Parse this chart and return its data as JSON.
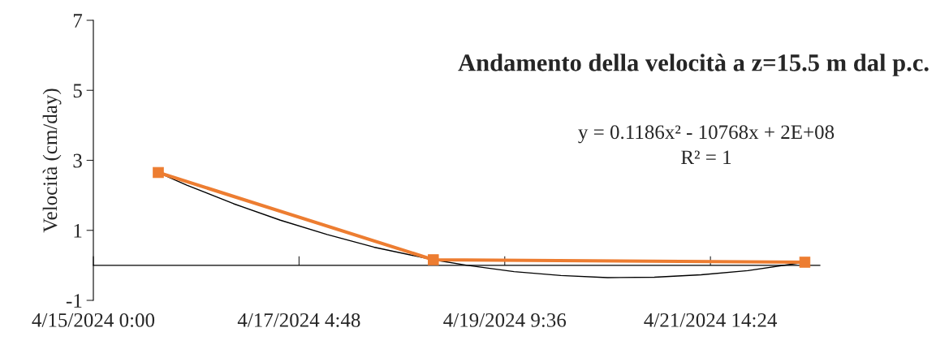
{
  "chart_data": {
    "type": "line",
    "title": "Andamento della velocità a z=15.5 m dal p.c.",
    "ylabel": "Velocità (cm/day)",
    "series": [
      {
        "color": "#ed7d31",
        "x": [
          "2024-04-15T16:40",
          "2024-04-18T15:16",
          "2024-04-22T14:38"
        ],
        "values": [
          2.65,
          0.16,
          0.09
        ],
        "marker": "square"
      },
      {
        "type": "line",
        "color": "#000000",
        "marker": "none",
        "x": [
          "2024-04-15T16:40",
          "2024-04-16T00:00",
          "2024-04-16T12:00",
          "2024-04-17T00:00",
          "2024-04-17T12:00",
          "2024-04-18T00:00",
          "2024-04-18T15:16",
          "2024-04-19T00:00",
          "2024-04-19T12:00",
          "2024-04-20T00:00",
          "2024-04-20T12:00",
          "2024-04-21T00:00",
          "2024-04-21T12:00",
          "2024-04-22T00:00",
          "2024-04-22T14:38"
        ],
        "values": [
          2.65,
          2.29,
          1.76,
          1.29,
          0.88,
          0.52,
          0.16,
          0.0,
          -0.18,
          -0.29,
          -0.35,
          -0.34,
          -0.27,
          -0.15,
          0.09
        ]
      }
    ],
    "xlim": [
      "2024-04-15T00:00",
      "2024-04-22T18:30"
    ],
    "xticks": [
      {
        "value": "2024-04-15T00:00",
        "label": "4/15/2024 0:00"
      },
      {
        "value": "2024-04-17T04:48",
        "label": "4/17/2024 4:48"
      },
      {
        "value": "2024-04-19T09:36",
        "label": "4/19/2024 9:36"
      },
      {
        "value": "2024-04-21T14:24",
        "label": "4/21/2024 14:24"
      }
    ],
    "ylim": [
      -1,
      7
    ],
    "yticks": [
      -1,
      1,
      3,
      5,
      7
    ],
    "grid": false,
    "legend": false,
    "annotations": [
      "y = 0.1186x² - 10768x + 2E+08",
      "R² = 1"
    ]
  }
}
